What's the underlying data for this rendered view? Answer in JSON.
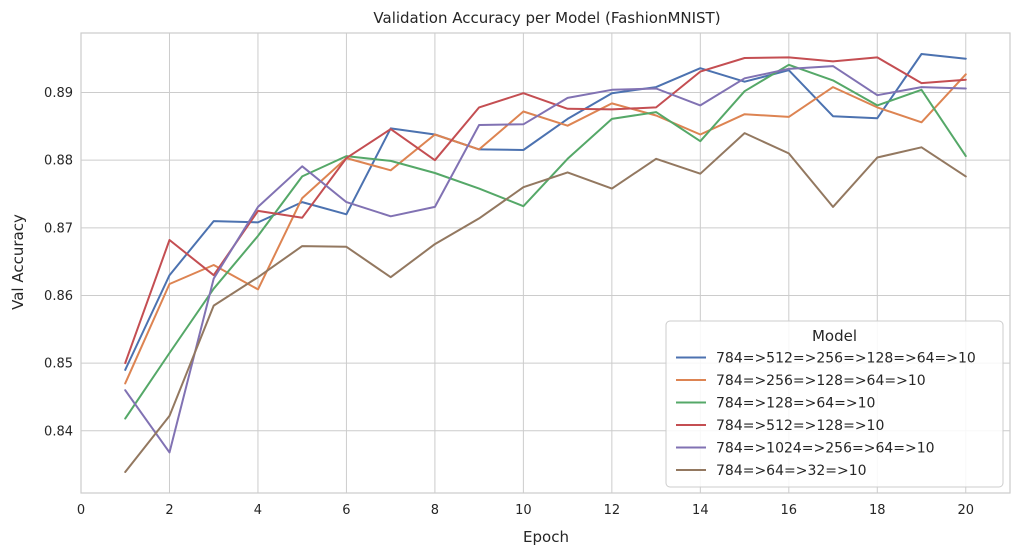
{
  "chart_data": {
    "type": "line",
    "title": "Validation Accuracy per Model (FashionMNIST)",
    "xlabel": "Epoch",
    "ylabel": "Val Accuracy",
    "xlim": [
      0,
      21
    ],
    "ylim": [
      0.8308,
      0.8988
    ],
    "xticks": [
      0,
      2,
      4,
      6,
      8,
      10,
      12,
      14,
      16,
      18,
      20
    ],
    "yticks": [
      0.84,
      0.85,
      0.86,
      0.87,
      0.88,
      0.89
    ],
    "ytick_labels": [
      "0.84",
      "0.85",
      "0.86",
      "0.87",
      "0.88",
      "0.89"
    ],
    "grid": true,
    "legend": {
      "title": "Model",
      "placement": "lower-right"
    },
    "x": [
      1,
      2,
      3,
      4,
      5,
      6,
      7,
      8,
      9,
      10,
      11,
      12,
      13,
      14,
      15,
      16,
      17,
      18,
      19,
      20
    ],
    "series": [
      {
        "name": "784=>512=>256=>128=>64=>10",
        "color": "#4c72b0",
        "values": [
          0.849,
          0.863,
          0.871,
          0.8708,
          0.8738,
          0.872,
          0.8847,
          0.8838,
          0.8816,
          0.8815,
          0.8861,
          0.8899,
          0.8908,
          0.8936,
          0.8916,
          0.8933,
          0.8865,
          0.8862,
          0.8957,
          0.895
        ]
      },
      {
        "name": "784=>256=>128=>64=>10",
        "color": "#dd8452",
        "values": [
          0.847,
          0.8617,
          0.8645,
          0.8609,
          0.8744,
          0.8803,
          0.8785,
          0.8838,
          0.8816,
          0.8872,
          0.8851,
          0.8884,
          0.8866,
          0.8838,
          0.8868,
          0.8864,
          0.8908,
          0.8878,
          0.8856,
          0.8927
        ]
      },
      {
        "name": "784=>128=>64=>10",
        "color": "#55a868",
        "values": [
          0.8418,
          0.8515,
          0.861,
          0.8688,
          0.8776,
          0.8806,
          0.8799,
          0.8781,
          0.8758,
          0.8732,
          0.8802,
          0.8861,
          0.8871,
          0.8828,
          0.8902,
          0.8941,
          0.8918,
          0.8881,
          0.8904,
          0.8806
        ]
      },
      {
        "name": "784=>512=>128=>10",
        "color": "#c44e52",
        "values": [
          0.85,
          0.8682,
          0.863,
          0.8725,
          0.8715,
          0.8803,
          0.8846,
          0.88,
          0.8878,
          0.8899,
          0.8876,
          0.8875,
          0.8878,
          0.8931,
          0.8951,
          0.8952,
          0.8946,
          0.8952,
          0.8914,
          0.8919
        ]
      },
      {
        "name": "784=>1024=>256=>64=>10",
        "color": "#8172b3",
        "values": [
          0.846,
          0.8368,
          0.8625,
          0.8731,
          0.8791,
          0.8738,
          0.8717,
          0.8731,
          0.8852,
          0.8853,
          0.8892,
          0.8904,
          0.8906,
          0.8881,
          0.8921,
          0.8935,
          0.8939,
          0.8896,
          0.8908,
          0.8906
        ]
      },
      {
        "name": "784=>64=>32=>10",
        "color": "#937860",
        "values": [
          0.8339,
          0.8422,
          0.8585,
          0.8627,
          0.8673,
          0.8672,
          0.8627,
          0.8676,
          0.8714,
          0.876,
          0.8782,
          0.8758,
          0.8802,
          0.878,
          0.884,
          0.881,
          0.8731,
          0.8804,
          0.8819,
          0.8776
        ]
      }
    ]
  }
}
